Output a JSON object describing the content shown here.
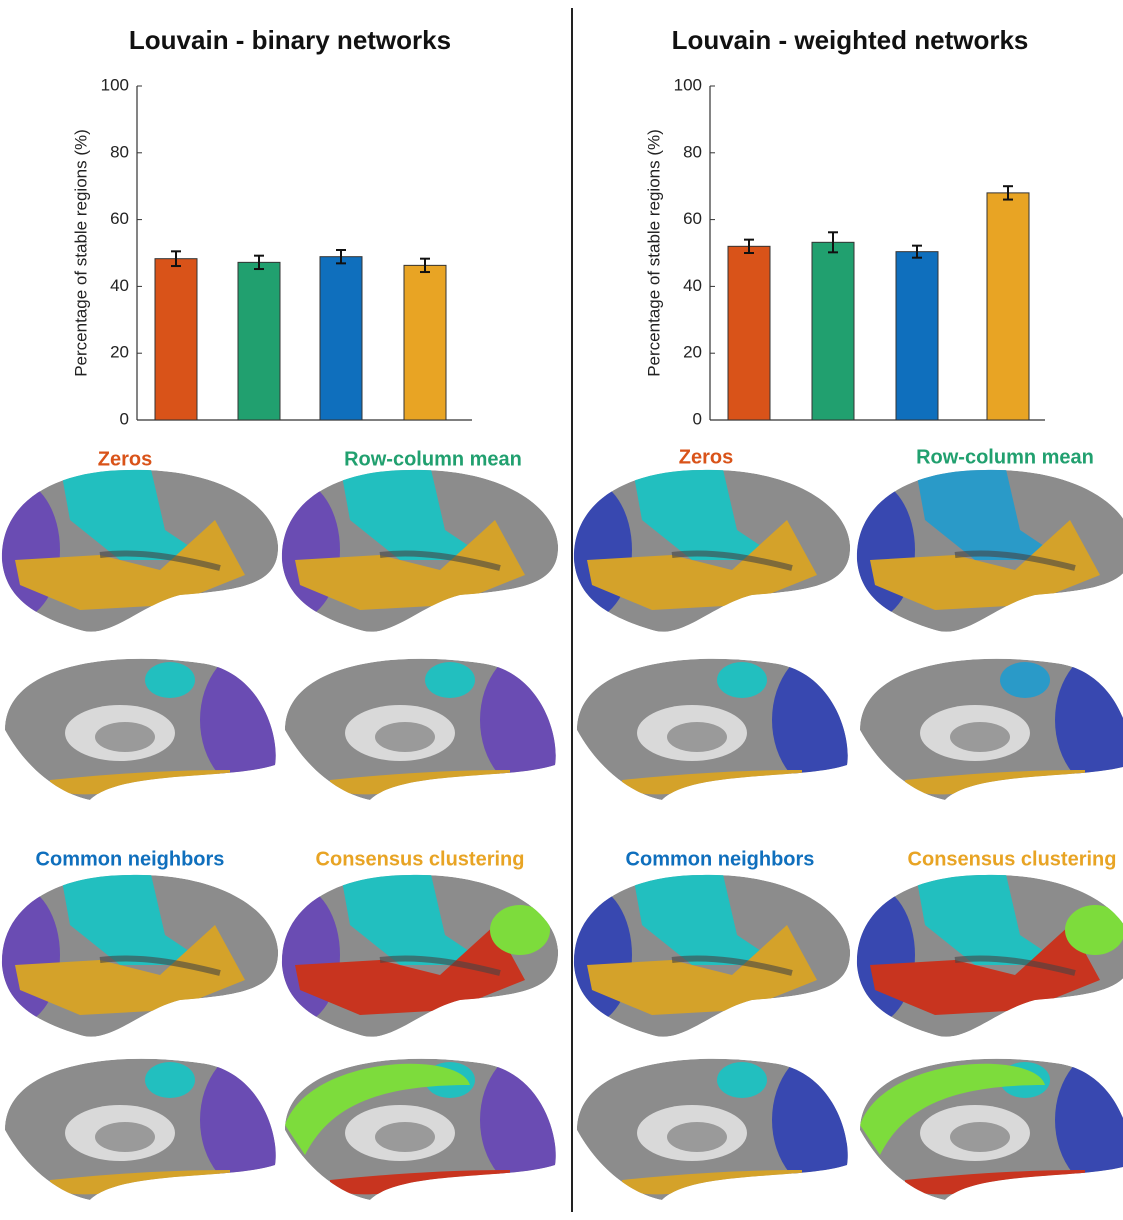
{
  "chart_data": [
    {
      "type": "bar",
      "title": "Louvain - binary networks",
      "ylabel": "Percentage of stable regions (%)",
      "categories": [
        "Zeros",
        "Row-column mean",
        "Common neighbors",
        "Consensus clustering"
      ],
      "values": [
        48.3,
        47.2,
        48.9,
        46.3
      ],
      "errors": [
        2.2,
        2,
        2,
        2
      ],
      "colors": [
        "#d95319",
        "#21a06f",
        "#0f6fbd",
        "#e8a424"
      ],
      "ylim": [
        0,
        100
      ],
      "yticks": [
        0,
        20,
        40,
        60,
        80,
        100
      ]
    },
    {
      "type": "bar",
      "title": "Louvain - weighted networks",
      "ylabel": "Percentage of stable regions (%)",
      "categories": [
        "Zeros",
        "Row-column mean",
        "Common neighbors",
        "Consensus clustering"
      ],
      "values": [
        52,
        53.2,
        50.4,
        68
      ],
      "errors": [
        2,
        3,
        1.8,
        2
      ],
      "colors": [
        "#d95319",
        "#21a06f",
        "#0f6fbd",
        "#e8a424"
      ],
      "ylim": [
        0,
        100
      ],
      "yticks": [
        0,
        20,
        40,
        60,
        80,
        100
      ]
    }
  ]
}
